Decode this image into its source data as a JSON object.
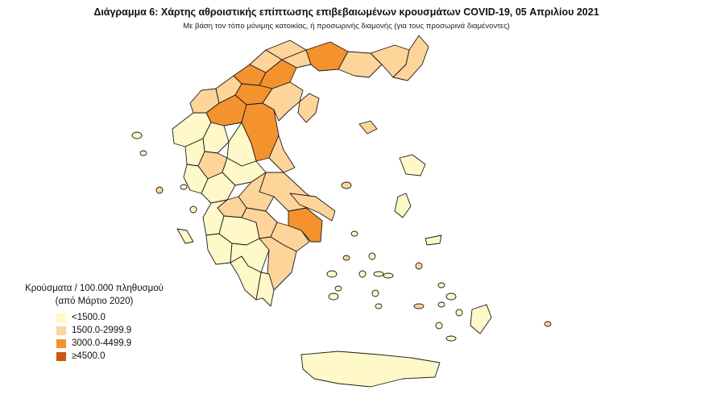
{
  "title": "Διάγραμμα 6: Χάρτης αθροιστικής επίπτωσης επιβεβαιωμένων κρουσμάτων COVID-19, 05 Απριλίου 2021",
  "subtitle": "Με βάση τον τόπο μόνιμης κατοικίας, ή προσωρινής διαμονής (για τους προσωρινά διαμένοντες)",
  "legend": {
    "title_line1": "Κρούσματα / 100.000 πληθυσμού",
    "title_line2": "(από Μάρτιο 2020)",
    "classes": [
      {
        "label": "<1500.0",
        "color": "#fff8c8"
      },
      {
        "label": "1500.0-2999.9",
        "color": "#fdd49a"
      },
      {
        "label": "3000.0-4499.9",
        "color": "#f4922e"
      },
      {
        "label": "≥4500.0",
        "color": "#c9580c"
      }
    ]
  },
  "map": {
    "regions": [
      1,
      1,
      2,
      2,
      2,
      1,
      1,
      1,
      2,
      2,
      2,
      1,
      1,
      1,
      0,
      0,
      0,
      0,
      1,
      1,
      1,
      0,
      0,
      0,
      2,
      1,
      1,
      1,
      0,
      0,
      0,
      0,
      1,
      1,
      1,
      0,
      0,
      1,
      1,
      0,
      1,
      0,
      0,
      0,
      0,
      0
    ]
  }
}
